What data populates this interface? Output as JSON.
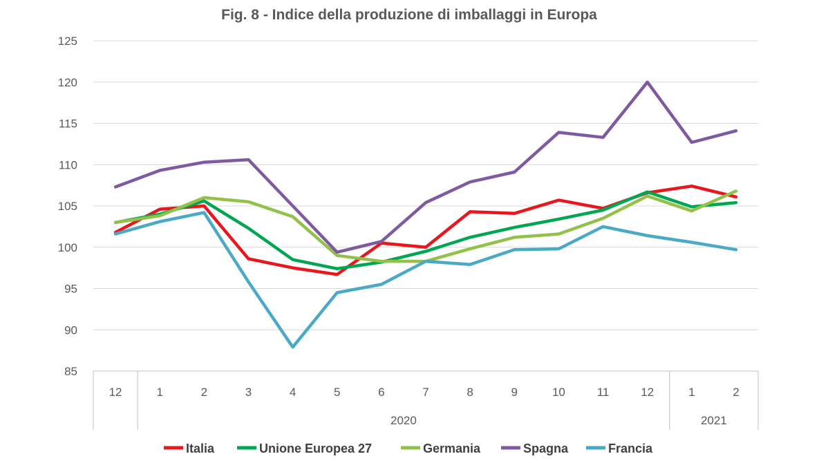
{
  "chart_data": {
    "type": "line",
    "title": "Fig. 8 - Indice della produzione di imballaggi in Europa",
    "categories": [
      "12",
      "1",
      "2",
      "3",
      "4",
      "5",
      "6",
      "7",
      "8",
      "9",
      "10",
      "11",
      "12",
      "1",
      "2"
    ],
    "year_groups": [
      {
        "label": "",
        "start": 0,
        "end": 0
      },
      {
        "label": "2020",
        "start": 1,
        "end": 12
      },
      {
        "label": "2021",
        "start": 13,
        "end": 14
      }
    ],
    "ylim": [
      85,
      125
    ],
    "yticks": [
      85,
      90,
      95,
      100,
      105,
      110,
      115,
      120,
      125
    ],
    "grid": true,
    "legend_position": "bottom",
    "series": [
      {
        "name": "Italia",
        "color": "#e8171e",
        "values": [
          101.8,
          104.6,
          105.0,
          98.6,
          97.5,
          96.7,
          100.5,
          100.0,
          104.3,
          104.1,
          105.7,
          104.7,
          106.6,
          107.4,
          106.1
        ]
      },
      {
        "name": "Unione Europea 27",
        "color": "#00a651",
        "values": [
          103.0,
          104.0,
          105.6,
          102.3,
          98.5,
          97.4,
          98.2,
          99.5,
          101.2,
          102.4,
          103.4,
          104.5,
          106.7,
          104.9,
          105.4
        ]
      },
      {
        "name": "Germania",
        "color": "#92c14a",
        "values": [
          103.0,
          103.8,
          106.0,
          105.5,
          103.7,
          99.0,
          98.3,
          98.3,
          99.8,
          101.2,
          101.6,
          103.5,
          106.2,
          104.4,
          106.8
        ]
      },
      {
        "name": "Spagna",
        "color": "#7f5aa1",
        "values": [
          107.3,
          109.3,
          110.3,
          110.6,
          105.0,
          99.4,
          100.7,
          105.4,
          107.9,
          109.1,
          113.9,
          113.3,
          120.0,
          112.7,
          114.1
        ]
      },
      {
        "name": "Francia",
        "color": "#4aaac6",
        "values": [
          101.6,
          103.1,
          104.2,
          95.8,
          87.9,
          94.5,
          95.5,
          98.3,
          97.9,
          99.7,
          99.8,
          102.5,
          101.4,
          100.6,
          99.7
        ]
      }
    ]
  }
}
